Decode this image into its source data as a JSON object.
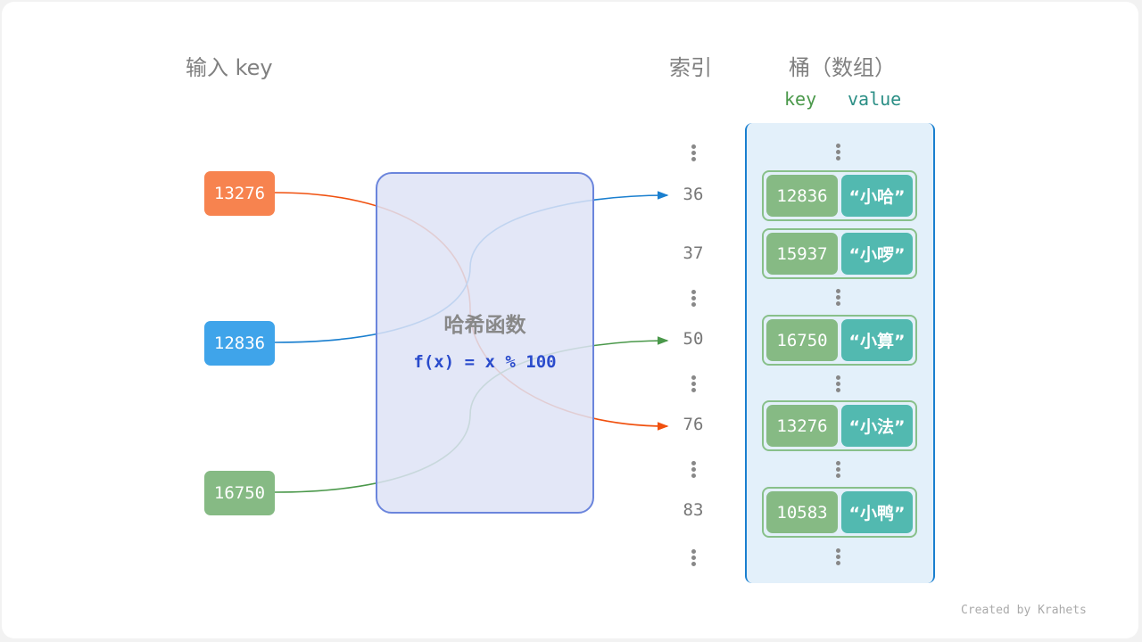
{
  "headers": {
    "input_key": "输入 key",
    "index": "索引",
    "bucket": "桶（数组）",
    "col_key": "key",
    "col_value": "value"
  },
  "inputs": [
    {
      "key": "13276",
      "color": "#f7834f",
      "line_color": "#f0500e"
    },
    {
      "key": "12836",
      "color": "#3fa4ea",
      "line_color": "#1a7fcf"
    },
    {
      "key": "16750",
      "color": "#86ba84",
      "line_color": "#4a984a"
    }
  ],
  "hash_function": {
    "title": "哈希函数",
    "formula": "f(x) = x % 100"
  },
  "indices": [
    "36",
    "37",
    "50",
    "76",
    "83"
  ],
  "buckets": [
    {
      "key": "12836",
      "value": "“小哈”"
    },
    {
      "key": "15937",
      "value": "“小啰”"
    },
    {
      "key": "16750",
      "value": "“小算”"
    },
    {
      "key": "13276",
      "value": "“小法”"
    },
    {
      "key": "10583",
      "value": "“小鸭”"
    }
  ],
  "credit": "Created by Krahets"
}
